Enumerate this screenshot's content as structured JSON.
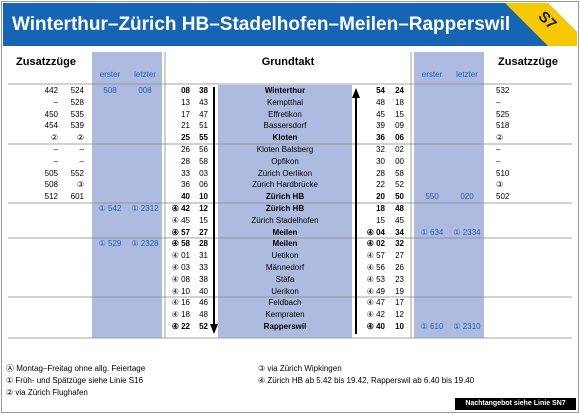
{
  "header": {
    "title": "Winterthur–Zürich HB–Stadelhofen–Meilen–Rapperswil",
    "line": "S7"
  },
  "headers": {
    "left_extra": "Zusatzzüge",
    "left_first": "erster",
    "left_last": "letzter",
    "main": "Grundtakt",
    "right_first": "erster",
    "right_last": "letzter",
    "right_extra": "Zusatzzüge"
  },
  "rows": [
    {
      "left_extra": [
        "442",
        "524"
      ],
      "left_first": "508",
      "left_last": "008",
      "left_minutes": [
        "08",
        "38"
      ],
      "station": "Winterthur",
      "right_minutes": [
        "54",
        "24"
      ],
      "right_extra": "532"
    },
    {
      "left_extra": [
        "–",
        "528"
      ],
      "left_minutes": [
        "13",
        "43"
      ],
      "station": "Kemptthal",
      "right_minutes": [
        "48",
        "18"
      ],
      "right_extra": "–"
    },
    {
      "left_extra": [
        "450",
        "535"
      ],
      "left_minutes": [
        "17",
        "47"
      ],
      "station": "Effretikon",
      "right_minutes": [
        "45",
        "15"
      ],
      "right_extra": "525"
    },
    {
      "left_extra": [
        "454",
        "539"
      ],
      "left_minutes": [
        "21",
        "51"
      ],
      "station": "Bassersdorf",
      "right_minutes": [
        "39",
        "09"
      ],
      "right_extra": "518"
    },
    {
      "left_extra": [
        "②",
        "②"
      ],
      "left_minutes": [
        "25",
        "55"
      ],
      "station": "Kloten",
      "right_minutes": [
        "36",
        "06"
      ],
      "right_extra": "②"
    },
    {
      "left_extra": [
        "–",
        "–"
      ],
      "left_minutes": [
        "26",
        "56"
      ],
      "station": "Kloten Balsberg",
      "right_minutes": [
        "32",
        "02"
      ],
      "right_extra": "–"
    },
    {
      "left_extra": [
        "–",
        "–"
      ],
      "left_minutes": [
        "28",
        "58"
      ],
      "station": "Opfikon",
      "right_minutes": [
        "30",
        "00"
      ],
      "right_extra": "–"
    },
    {
      "left_extra": [
        "505",
        "552"
      ],
      "left_minutes": [
        "33",
        "03"
      ],
      "station": "Zürich Oerlikon",
      "right_minutes": [
        "28",
        "58"
      ],
      "right_extra": "510"
    },
    {
      "left_extra": [
        "508",
        "③"
      ],
      "left_minutes": [
        "36",
        "06"
      ],
      "station": "Zürich Hardbrücke",
      "right_minutes": [
        "22",
        "52"
      ],
      "right_extra": "③"
    },
    {
      "left_extra": [
        "512",
        "601"
      ],
      "left_minutes": [
        "40",
        "10"
      ],
      "station": "Zürich HB",
      "right_minutes": [
        "20",
        "50"
      ],
      "right_first": "550",
      "right_last": "020",
      "right_extra": "502"
    },
    {
      "left_first": "① 542",
      "left_last": "① 2312",
      "left_minutes": [
        "④ 42",
        "12"
      ],
      "station": "Zürich HB",
      "right_minutes": [
        "18",
        "48"
      ]
    },
    {
      "left_minutes": [
        "④ 45",
        "15"
      ],
      "station": "Zürich Stadelhofen",
      "right_minutes": [
        "15",
        "45"
      ]
    },
    {
      "left_minutes": [
        "④ 57",
        "27"
      ],
      "station": "Meilen",
      "right_minutes": [
        "④ 04",
        "34"
      ],
      "right_first": "① 634",
      "right_last": "① 2334"
    },
    {
      "left_first": "① 529",
      "left_last": "① 2328",
      "left_minutes": [
        "④ 58",
        "28"
      ],
      "station": "Meilen",
      "right_minutes": [
        "④ 02",
        "32"
      ]
    },
    {
      "left_minutes": [
        "④ 01",
        "31"
      ],
      "station": "Uetikon",
      "right_minutes": [
        "④ 57",
        "27"
      ]
    },
    {
      "left_minutes": [
        "④ 03",
        "33"
      ],
      "station": "Männedorf",
      "right_minutes": [
        "④ 56",
        "26"
      ]
    },
    {
      "left_minutes": [
        "④ 08",
        "38"
      ],
      "station": "Stäfa",
      "right_minutes": [
        "④ 53",
        "23"
      ]
    },
    {
      "left_minutes": [
        "④ 10",
        "40"
      ],
      "station": "Uerikon",
      "right_minutes": [
        "④ 49",
        "19"
      ]
    },
    {
      "left_minutes": [
        "④ 16",
        "46"
      ],
      "station": "Feldbach",
      "right_minutes": [
        "④ 47",
        "17"
      ]
    },
    {
      "left_minutes": [
        "④ 18",
        "48"
      ],
      "station": "Kempraten",
      "right_minutes": [
        "④ 42",
        "12"
      ]
    },
    {
      "left_minutes": [
        "④ 22",
        "52"
      ],
      "station": "Rapperswil",
      "right_minutes": [
        "④ 40",
        "10"
      ],
      "right_first": "① 610",
      "right_last": "① 2310"
    }
  ],
  "footnotes": {
    "left": [
      "Ⓐ Montag–Freitag ohne allg. Feiertage",
      "① Früh- und Spätzüge siehe Linie S16",
      "② via Zürich Flughafen"
    ],
    "right": [
      "③ via Zürich Wipkingen",
      "④ Zürich HB ab 5.42 bis 19.42, Rapperswil ab 6.40 bis 19.40"
    ],
    "night": "Nachtangebot siehe Linie SN7"
  }
}
